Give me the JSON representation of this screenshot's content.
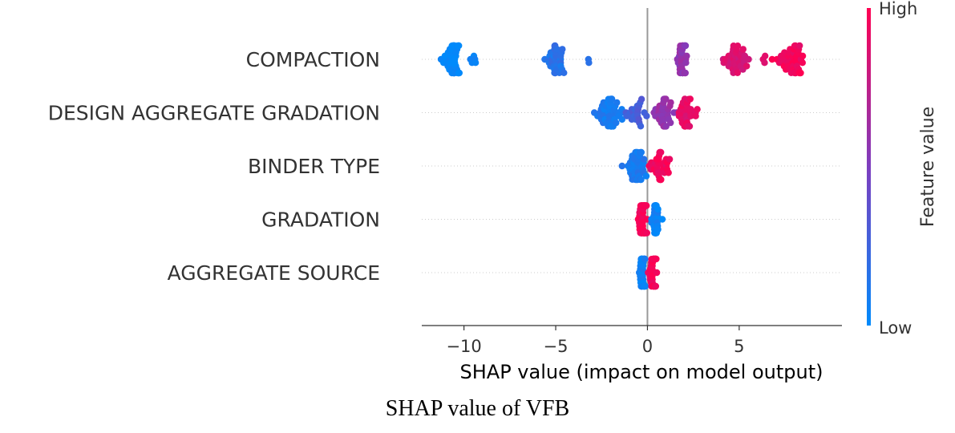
{
  "caption": "SHAP value of VFB",
  "colors": {
    "low": "#1e88e5",
    "mid": "#7d3ebf",
    "high": "#ff0d57",
    "zero_line": "#999999",
    "row_grid": "#cccccc"
  },
  "chart_data": {
    "type": "scatter",
    "subtype": "beeswarm",
    "title": "",
    "xlabel": "SHAP value (impact on model output)",
    "ylabel": "",
    "xlim": [
      -12.3,
      10.6
    ],
    "xticks": [
      -10,
      -5,
      0,
      5
    ],
    "xtick_labels": [
      "−10",
      "−5",
      "0",
      "5"
    ],
    "features": [
      "COMPACTION",
      "DESIGN AGGREGATE GRADATION",
      "BINDER TYPE",
      "GRADATION",
      "AGGREGATE SOURCE"
    ],
    "colorbar": {
      "title": "Feature value",
      "high_label": "High",
      "low_label": "Low"
    },
    "series": [
      {
        "feature": "COMPACTION",
        "clusters": [
          {
            "center": -10.6,
            "spread": 0.45,
            "count": 42,
            "feature_value": 0.0
          },
          {
            "center": -9.5,
            "spread": 0.3,
            "count": 5,
            "feature_value": 0.05
          },
          {
            "center": -5.0,
            "spread": 0.45,
            "count": 34,
            "feature_value": 0.15
          },
          {
            "center": -3.2,
            "spread": 0.1,
            "count": 2,
            "feature_value": 0.2
          },
          {
            "center": 1.9,
            "spread": 0.28,
            "count": 32,
            "feature_value": 0.58
          },
          {
            "center": 4.8,
            "spread": 0.55,
            "count": 36,
            "feature_value": 0.85
          },
          {
            "center": 6.3,
            "spread": 0.12,
            "count": 3,
            "feature_value": 0.9
          },
          {
            "center": 7.8,
            "spread": 0.8,
            "count": 46,
            "feature_value": 0.95
          }
        ]
      },
      {
        "feature": "DESIGN AGGREGATE GRADATION",
        "clusters": [
          {
            "center": -2.0,
            "spread": 0.75,
            "count": 44,
            "feature_value": 0.1
          },
          {
            "center": -0.6,
            "spread": 0.45,
            "count": 22,
            "feature_value": 0.3
          },
          {
            "center": 0.9,
            "spread": 0.55,
            "count": 32,
            "feature_value": 0.6
          },
          {
            "center": 2.1,
            "spread": 0.55,
            "count": 32,
            "feature_value": 0.9
          }
        ]
      },
      {
        "feature": "BINDER TYPE",
        "clusters": [
          {
            "center": -0.6,
            "spread": 0.42,
            "count": 44,
            "feature_value": 0.1
          },
          {
            "center": 0.7,
            "spread": 0.42,
            "count": 34,
            "feature_value": 0.95
          }
        ]
      },
      {
        "feature": "GRADATION",
        "clusters": [
          {
            "center": -0.25,
            "spread": 0.18,
            "count": 58,
            "feature_value": 0.97
          },
          {
            "center": 0.45,
            "spread": 0.2,
            "count": 42,
            "feature_value": 0.05
          }
        ]
      },
      {
        "feature": "AGGREGATE SOURCE",
        "clusters": [
          {
            "center": -0.3,
            "spread": 0.18,
            "count": 40,
            "feature_value": 0.05
          },
          {
            "center": 0.3,
            "spread": 0.18,
            "count": 38,
            "feature_value": 0.97
          }
        ]
      }
    ]
  }
}
